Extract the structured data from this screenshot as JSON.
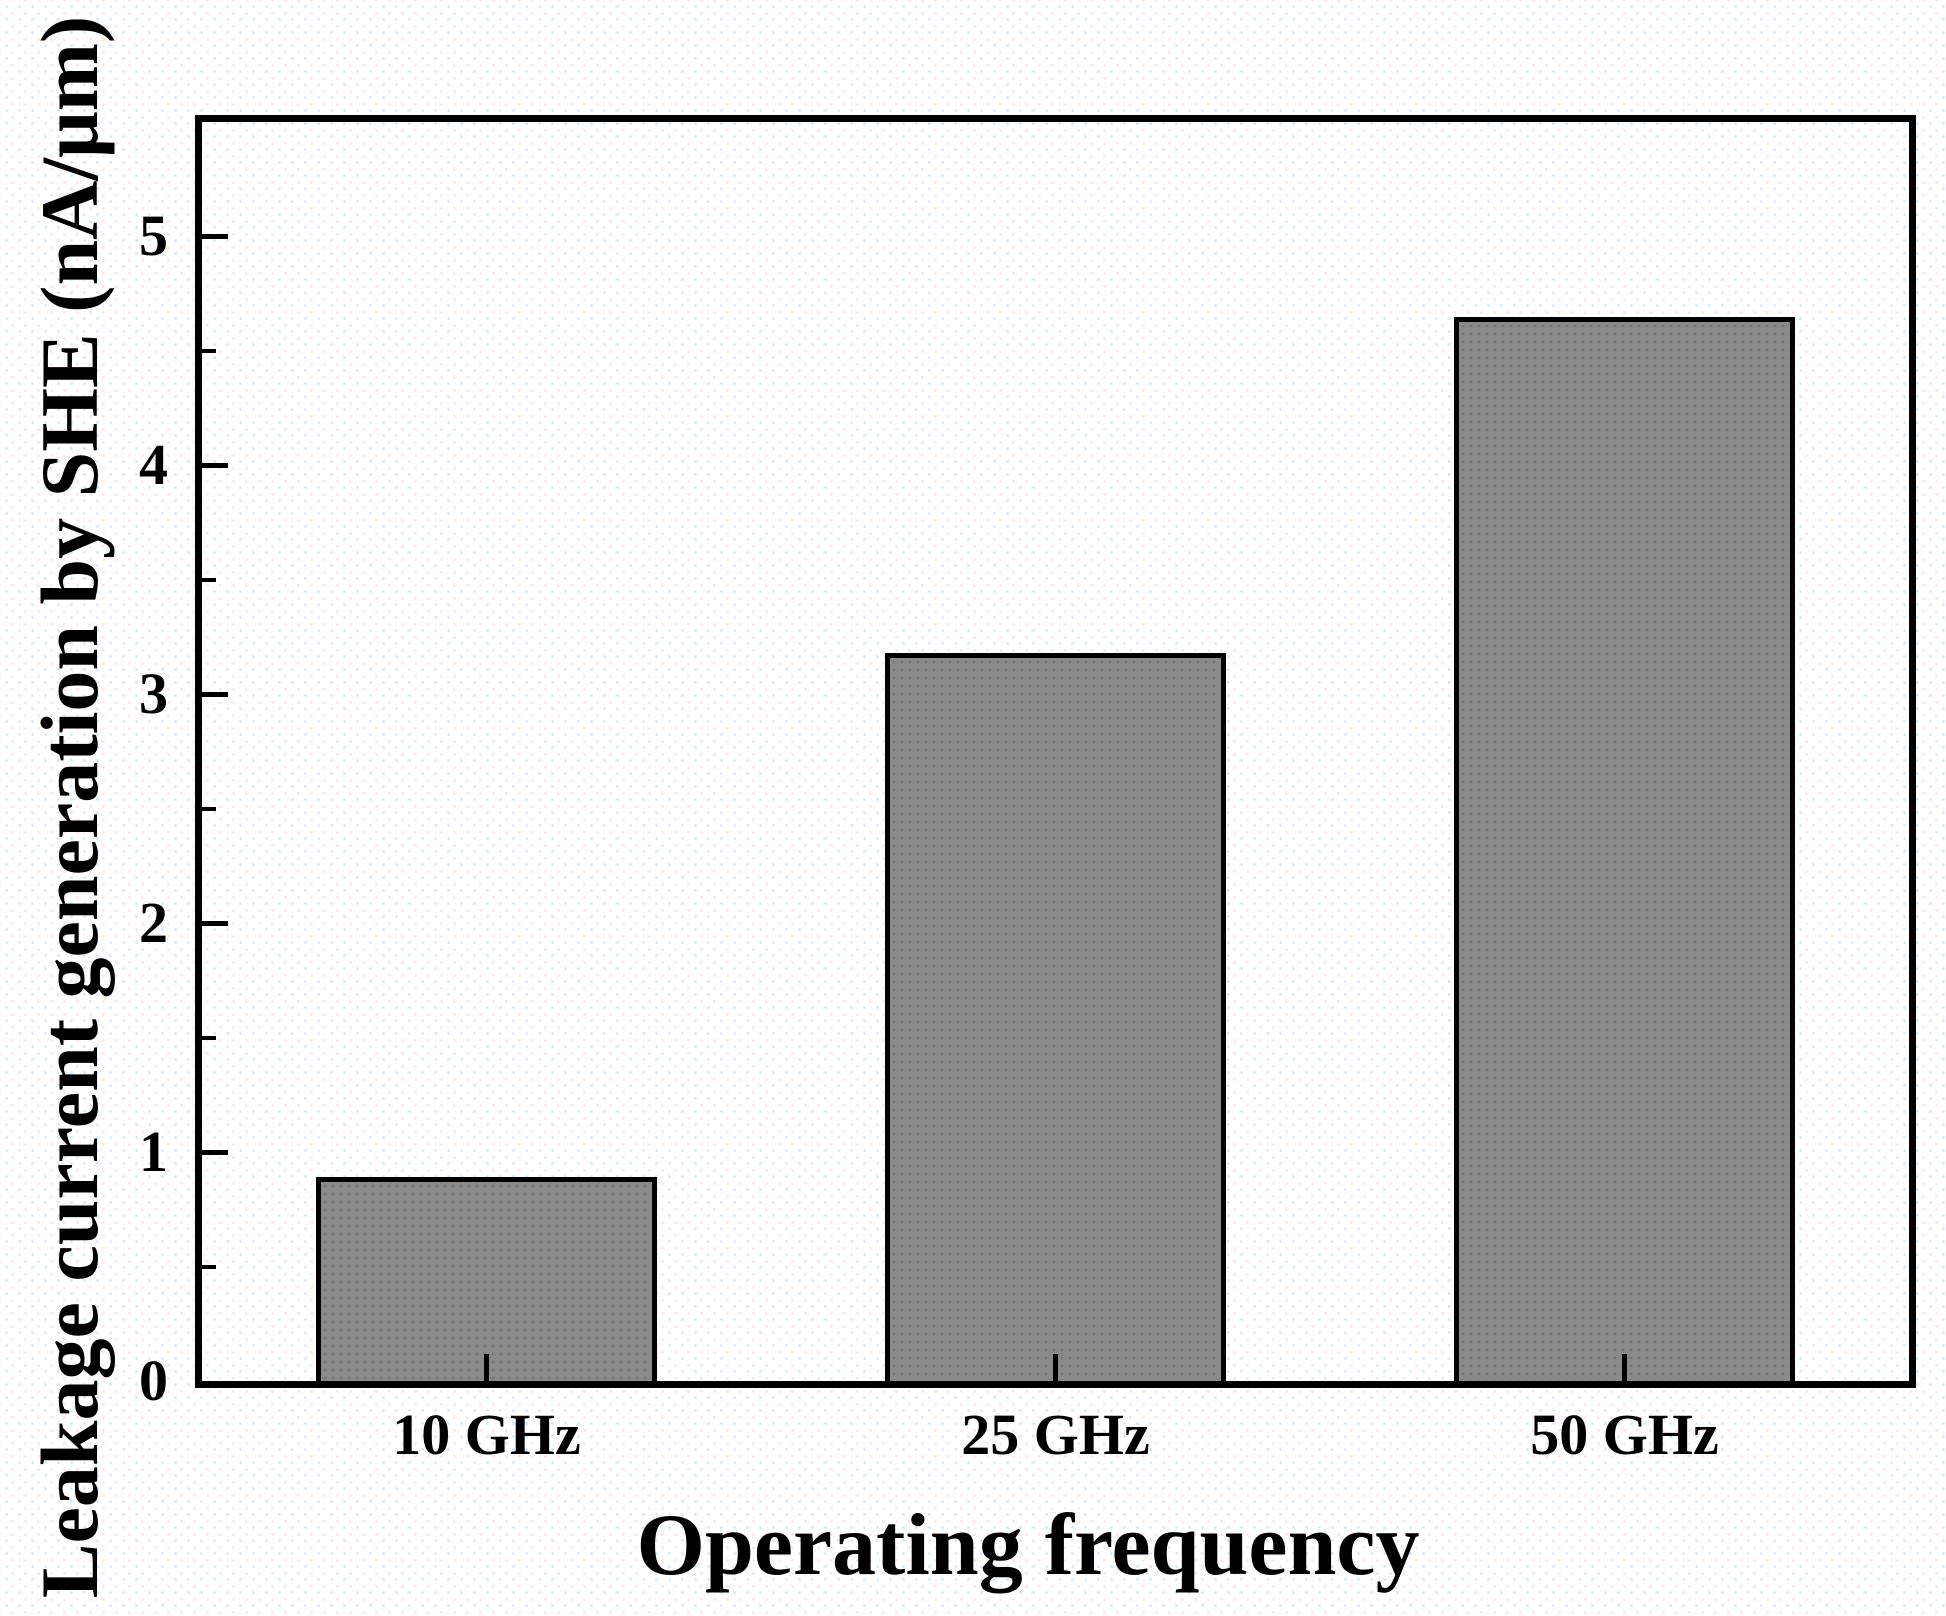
{
  "chart_data": {
    "type": "bar",
    "categories": [
      "10 GHz",
      "25 GHz",
      "50 GHz"
    ],
    "values": [
      0.89,
      3.18,
      4.65
    ],
    "title": "",
    "xlabel": "Operating frequency",
    "ylabel": "Leakage current generation by SHE (nA/μm)",
    "ylim": [
      0,
      5.5
    ],
    "yticks": [
      0,
      1,
      2,
      3,
      4,
      5
    ],
    "ytick_labels": [
      "0",
      "1",
      "2",
      "3",
      "4",
      "5"
    ],
    "minor_ytick_step": 0.5,
    "bar_width_fraction": 0.6,
    "grid": false,
    "legend": null,
    "colors": {
      "bar_fill": "#8a8a8a",
      "bar_border": "#000000",
      "axis": "#000000",
      "text": "#000000",
      "background": "#ffffff"
    }
  }
}
